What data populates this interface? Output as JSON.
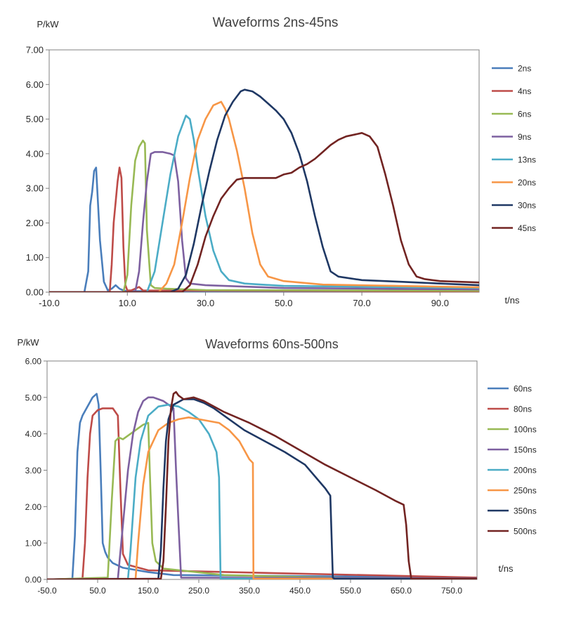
{
  "chart_data": [
    {
      "type": "line",
      "title": "Waveforms 2ns-45ns",
      "xlabel": "t/ns",
      "ylabel": "P/kW",
      "xlim": [
        -10,
        100
      ],
      "ylim": [
        0,
        7
      ],
      "xticks": [
        -10,
        10,
        30,
        50,
        70,
        90
      ],
      "xtick_labels": [
        "-10.0",
        "10.0",
        "30.0",
        "50.0",
        "70.0",
        "90.0"
      ],
      "yticks": [
        0,
        1,
        2,
        3,
        4,
        5,
        6,
        7
      ],
      "ytick_labels": [
        "0.00",
        "1.00",
        "2.00",
        "3.00",
        "4.00",
        "5.00",
        "6.00",
        "7.00"
      ],
      "grid": false,
      "legend": "right",
      "series": [
        {
          "name": "2ns",
          "color": "#4a7ebb",
          "x": [
            -10,
            -1,
            0,
            0.5,
            1,
            1.5,
            2,
            3,
            4,
            5,
            6,
            7,
            8,
            9,
            10,
            100
          ],
          "y": [
            0,
            0,
            0.6,
            2.5,
            2.9,
            3.5,
            3.6,
            1.5,
            0.3,
            0.05,
            0.1,
            0.2,
            0.1,
            0.05,
            0.03,
            0.02
          ]
        },
        {
          "name": "4ns",
          "color": "#be4b48",
          "x": [
            -10,
            5.5,
            6,
            6.5,
            7,
            7.5,
            8,
            8.5,
            9,
            9.5,
            10,
            11,
            12,
            13,
            14,
            100
          ],
          "y": [
            0,
            0,
            0.8,
            2.0,
            2.6,
            3.2,
            3.6,
            3.3,
            1.3,
            0.2,
            0.05,
            0.05,
            0.1,
            0.15,
            0.05,
            0.02
          ]
        },
        {
          "name": "6ns",
          "color": "#98b954",
          "x": [
            -10,
            9,
            10,
            11,
            12,
            13,
            14,
            14.5,
            15,
            16,
            17,
            20,
            30,
            100
          ],
          "y": [
            0,
            0,
            0.5,
            2.5,
            3.8,
            4.2,
            4.38,
            4.3,
            1.8,
            0.2,
            0.12,
            0.1,
            0.06,
            0.04
          ]
        },
        {
          "name": "9ns",
          "color": "#7d60a0",
          "x": [
            -10,
            12,
            13,
            14,
            15,
            16,
            17,
            19,
            21,
            22,
            23,
            24,
            25,
            26,
            30,
            50,
            100
          ],
          "y": [
            0,
            0,
            0.6,
            2.0,
            3.2,
            4.0,
            4.05,
            4.05,
            4.0,
            3.95,
            3.2,
            1.5,
            0.4,
            0.25,
            0.2,
            0.12,
            0.08
          ]
        },
        {
          "name": "13ns",
          "color": "#4bacc6",
          "x": [
            -10,
            15,
            17,
            19,
            21,
            23,
            25,
            26,
            27,
            28,
            30,
            32,
            34,
            36,
            40,
            50,
            100
          ],
          "y": [
            0,
            0,
            0.6,
            2.0,
            3.4,
            4.5,
            5.1,
            5.0,
            4.4,
            3.6,
            2.2,
            1.2,
            0.6,
            0.35,
            0.25,
            0.18,
            0.12
          ]
        },
        {
          "name": "20ns",
          "color": "#f79646",
          "x": [
            -10,
            18,
            20,
            22,
            24,
            26,
            28,
            30,
            32,
            34,
            35,
            36,
            38,
            40,
            42,
            44,
            46,
            50,
            60,
            100
          ],
          "y": [
            0,
            0,
            0.25,
            0.8,
            2.0,
            3.3,
            4.4,
            5.0,
            5.4,
            5.5,
            5.3,
            5.0,
            4.1,
            3.0,
            1.7,
            0.8,
            0.45,
            0.32,
            0.22,
            0.14
          ]
        },
        {
          "name": "30ns",
          "color": "#1f3864",
          "x": [
            -10,
            21,
            23,
            25,
            27,
            29,
            31,
            33,
            35,
            37,
            39,
            40,
            42,
            44,
            46,
            48,
            50,
            52,
            54,
            56,
            58,
            60,
            62,
            64,
            70,
            80,
            90,
            100
          ],
          "y": [
            0,
            0,
            0.1,
            0.5,
            1.4,
            2.5,
            3.5,
            4.4,
            5.1,
            5.5,
            5.8,
            5.85,
            5.8,
            5.65,
            5.45,
            5.25,
            5.0,
            4.6,
            4.0,
            3.2,
            2.2,
            1.3,
            0.6,
            0.45,
            0.35,
            0.3,
            0.25,
            0.2
          ]
        },
        {
          "name": "45ns",
          "color": "#722422",
          "x": [
            -10,
            24,
            26,
            28,
            30,
            32,
            34,
            36,
            38,
            40,
            44,
            48,
            50,
            52,
            54,
            56,
            58,
            60,
            62,
            64,
            66,
            68,
            70,
            72,
            74,
            76,
            78,
            80,
            82,
            84,
            86,
            88,
            90,
            95,
            100
          ],
          "y": [
            0,
            0,
            0.2,
            0.8,
            1.6,
            2.2,
            2.7,
            3.0,
            3.25,
            3.3,
            3.3,
            3.3,
            3.4,
            3.45,
            3.6,
            3.7,
            3.85,
            4.05,
            4.25,
            4.4,
            4.5,
            4.55,
            4.6,
            4.5,
            4.2,
            3.4,
            2.5,
            1.5,
            0.8,
            0.45,
            0.38,
            0.35,
            0.32,
            0.3,
            0.28
          ]
        }
      ]
    },
    {
      "type": "line",
      "title": "Waveforms 60ns-500ns",
      "xlabel": "t/ns",
      "ylabel": "P/kW",
      "xlim": [
        -50,
        800
      ],
      "ylim": [
        0,
        6
      ],
      "xticks": [
        -50,
        50,
        150,
        250,
        350,
        450,
        550,
        650,
        750
      ],
      "xtick_labels": [
        "-50.0",
        "50.0",
        "150.0",
        "250.0",
        "350.0",
        "450.0",
        "550.0",
        "650.0",
        "750.0"
      ],
      "yticks": [
        0,
        1,
        2,
        3,
        4,
        5,
        6
      ],
      "ytick_labels": [
        "0.00",
        "1.00",
        "2.00",
        "3.00",
        "4.00",
        "5.00",
        "6.00"
      ],
      "grid": false,
      "legend": "right",
      "series": [
        {
          "name": "60ns",
          "color": "#4a7ebb",
          "x": [
            -50,
            0,
            5,
            10,
            15,
            20,
            30,
            40,
            48,
            52,
            56,
            60,
            65,
            70,
            80,
            100,
            150,
            200,
            800
          ],
          "y": [
            0,
            0.02,
            1.2,
            3.5,
            4.3,
            4.5,
            4.75,
            5.0,
            5.1,
            4.8,
            3.0,
            1.0,
            0.75,
            0.6,
            0.45,
            0.32,
            0.2,
            0.12,
            0.05
          ]
        },
        {
          "name": "80ns",
          "color": "#be4b48",
          "x": [
            -50,
            20,
            25,
            30,
            35,
            40,
            50,
            60,
            80,
            90,
            95,
            100,
            110,
            150,
            800
          ],
          "y": [
            0,
            0.02,
            1.0,
            2.8,
            4.0,
            4.5,
            4.65,
            4.7,
            4.7,
            4.5,
            2.5,
            0.7,
            0.4,
            0.25,
            0.05
          ]
        },
        {
          "name": "100ns",
          "color": "#98b954",
          "x": [
            -50,
            70,
            78,
            85,
            92,
            100,
            120,
            140,
            150,
            153,
            158,
            165,
            180,
            300,
            560
          ],
          "y": [
            0,
            0.05,
            2.2,
            3.8,
            3.9,
            3.85,
            4.05,
            4.25,
            4.3,
            3.0,
            1.0,
            0.5,
            0.3,
            0.12,
            0.03
          ]
        },
        {
          "name": "150ns",
          "color": "#7d60a0",
          "x": [
            -50,
            90,
            100,
            110,
            120,
            130,
            140,
            150,
            160,
            170,
            180,
            190,
            200,
            205,
            210,
            215,
            800
          ],
          "y": [
            0,
            0.02,
            1.5,
            3.0,
            4.0,
            4.6,
            4.9,
            5.0,
            5.0,
            4.95,
            4.9,
            4.8,
            4.7,
            3.0,
            1.5,
            0.05,
            0.03
          ]
        },
        {
          "name": "200ns",
          "color": "#4bacc6",
          "x": [
            -50,
            110,
            115,
            125,
            135,
            150,
            170,
            190,
            210,
            230,
            250,
            270,
            285,
            290,
            293,
            800
          ],
          "y": [
            0,
            0.02,
            0.8,
            2.8,
            3.8,
            4.5,
            4.75,
            4.8,
            4.75,
            4.6,
            4.4,
            4.0,
            3.5,
            2.8,
            0.02,
            0.02
          ]
        },
        {
          "name": "250ns",
          "color": "#f79646",
          "x": [
            -50,
            125,
            130,
            140,
            150,
            170,
            190,
            210,
            230,
            250,
            270,
            290,
            310,
            330,
            350,
            357,
            358,
            800
          ],
          "y": [
            0,
            0.02,
            1.0,
            2.6,
            3.5,
            4.1,
            4.3,
            4.4,
            4.45,
            4.4,
            4.35,
            4.3,
            4.1,
            3.8,
            3.3,
            3.2,
            0.02,
            0.02
          ]
        },
        {
          "name": "350ns",
          "color": "#1f3864",
          "x": [
            -50,
            170,
            175,
            180,
            185,
            190,
            200,
            220,
            240,
            260,
            280,
            300,
            340,
            380,
            420,
            460,
            500,
            510,
            515,
            518,
            800
          ],
          "y": [
            0,
            0.02,
            0.8,
            2.5,
            3.8,
            4.4,
            4.8,
            4.95,
            4.95,
            4.85,
            4.7,
            4.5,
            4.1,
            3.8,
            3.5,
            3.15,
            2.5,
            2.3,
            0.05,
            0.02,
            0.02
          ]
        },
        {
          "name": "500ns",
          "color": "#722422",
          "x": [
            -50,
            175,
            180,
            185,
            190,
            195,
            200,
            205,
            210,
            220,
            240,
            260,
            300,
            350,
            400,
            450,
            500,
            550,
            600,
            640,
            655,
            660,
            665,
            670,
            800
          ],
          "y": [
            0,
            0.02,
            0.5,
            2.0,
            3.8,
            4.7,
            5.1,
            5.15,
            5.05,
            4.95,
            5.0,
            4.9,
            4.6,
            4.3,
            3.95,
            3.55,
            3.15,
            2.8,
            2.45,
            2.15,
            2.05,
            1.5,
            0.5,
            0.02,
            0.02
          ]
        }
      ]
    }
  ]
}
